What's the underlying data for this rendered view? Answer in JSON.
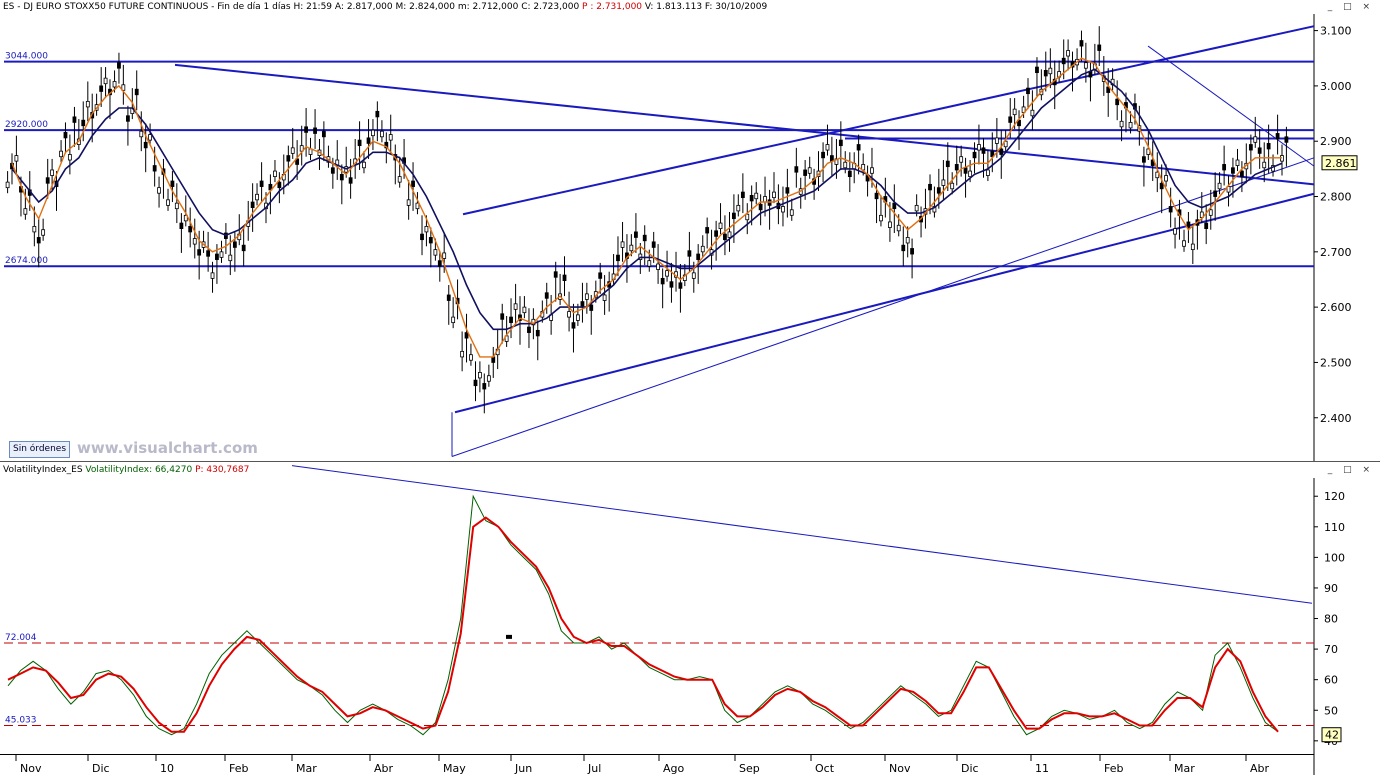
{
  "header_top": {
    "symbol": "ES",
    "name": "DJ EURO STOXX50 FUTURE CONTINUOUS",
    "period": "Fin de día 1 días",
    "H": "H: 21:59",
    "A": "A: 2.817,000",
    "M": "M: 2.824,000",
    "m": "m: 2.712,000",
    "C": "C: 2.723,000",
    "P": "P : 2.731,000",
    "V": "V: 1.813.113",
    "F": "F: 30/10/2009"
  },
  "header_bottom": {
    "name": "VolatilityIndex_ES",
    "indicator": "VolatilityIndex: 66,4270",
    "P": "P: 430,7687"
  },
  "window_buttons": "_ □ ×",
  "orders_button": "Sin órdenes",
  "watermark": "www.visualchart.com",
  "chart_data": [
    {
      "type": "line",
      "subtype": "candlestick-with-trendlines",
      "y_ticks": [
        "3.100",
        "3.000",
        "2.900",
        "2.800",
        "2.700",
        "2.600",
        "2.500",
        "2.400"
      ],
      "ylim": [
        2320,
        3130
      ],
      "current_price_label": "2.861",
      "level_labels": [
        "3044.000",
        "2920.000",
        "2674.000"
      ],
      "levels": [
        3044,
        2920,
        2674
      ],
      "series": [
        {
          "values": [
            2850,
            2790,
            2740,
            2830,
            2900,
            2910,
            2960,
            2990,
            3020,
            2960,
            2900,
            2840,
            2800,
            2760,
            2700,
            2680,
            2700,
            2720,
            2780,
            2800,
            2840,
            2870,
            2910,
            2890,
            2860,
            2830,
            2880,
            2920,
            2900,
            2860,
            2800,
            2740,
            2680,
            2600,
            2520,
            2470,
            2500,
            2560,
            2600,
            2560,
            2610,
            2630,
            2580,
            2600,
            2640,
            2660,
            2700,
            2720,
            2690,
            2660,
            2640,
            2680,
            2710,
            2740,
            2760,
            2780,
            2800,
            2790,
            2800,
            2820,
            2840,
            2870,
            2880,
            2860,
            2840,
            2790,
            2760,
            2720,
            2760,
            2800,
            2830,
            2860,
            2870,
            2860,
            2900,
            2940,
            2980,
            3000,
            3020,
            3040,
            3060,
            3040,
            3000,
            2960,
            2940,
            2880,
            2820,
            2760,
            2720,
            2760,
            2800,
            2830,
            2860,
            2890,
            2880,
            2880
          ]
        },
        {
          "values": [
            2860,
            2800,
            2760,
            2820,
            2880,
            2900,
            2950,
            2980,
            3000,
            2970,
            2910,
            2860,
            2810,
            2770,
            2720,
            2700,
            2710,
            2730,
            2770,
            2800,
            2830,
            2860,
            2890,
            2880,
            2860,
            2840,
            2870,
            2900,
            2890,
            2860,
            2810,
            2760,
            2700,
            2630,
            2560,
            2510,
            2510,
            2550,
            2580,
            2570,
            2600,
            2620,
            2590,
            2600,
            2630,
            2650,
            2690,
            2710,
            2690,
            2670,
            2650,
            2670,
            2700,
            2730,
            2750,
            2770,
            2790,
            2790,
            2800,
            2810,
            2830,
            2860,
            2870,
            2860,
            2840,
            2800,
            2770,
            2740,
            2760,
            2790,
            2820,
            2850,
            2860,
            2860,
            2890,
            2930,
            2960,
            2990,
            3010,
            3030,
            3050,
            3040,
            3000,
            2970,
            2940,
            2890,
            2830,
            2780,
            2740,
            2760,
            2790,
            2820,
            2850,
            2870,
            2870,
            2870
          ]
        },
        {
          "values": [
            2850,
            2820,
            2790,
            2810,
            2850,
            2870,
            2910,
            2940,
            2960,
            2960,
            2930,
            2890,
            2850,
            2810,
            2770,
            2740,
            2730,
            2740,
            2760,
            2780,
            2810,
            2830,
            2860,
            2870,
            2860,
            2850,
            2860,
            2880,
            2880,
            2870,
            2840,
            2800,
            2750,
            2700,
            2640,
            2590,
            2560,
            2560,
            2570,
            2570,
            2580,
            2600,
            2600,
            2600,
            2620,
            2640,
            2670,
            2690,
            2690,
            2680,
            2670,
            2670,
            2690,
            2710,
            2730,
            2750,
            2770,
            2780,
            2790,
            2800,
            2810,
            2830,
            2850,
            2850,
            2840,
            2820,
            2790,
            2770,
            2770,
            2780,
            2800,
            2820,
            2840,
            2850,
            2870,
            2900,
            2930,
            2960,
            2980,
            3000,
            3020,
            3030,
            3010,
            2990,
            2960,
            2920,
            2870,
            2820,
            2790,
            2780,
            2790,
            2800,
            2820,
            2840,
            2850,
            2860
          ]
        }
      ]
    },
    {
      "type": "line",
      "y_ticks": [
        "120",
        "110",
        "100",
        "90",
        "80",
        "70",
        "60",
        "50",
        "40"
      ],
      "ylim": [
        37,
        124
      ],
      "current_value_label": "42",
      "level_labels": [
        "72.004",
        "45.033"
      ],
      "levels": [
        72.004,
        45.033
      ],
      "series": [
        {
          "values": [
            58,
            63,
            66,
            63,
            57,
            52,
            56,
            62,
            63,
            60,
            55,
            48,
            44,
            42,
            44,
            52,
            62,
            68,
            72,
            76,
            72,
            68,
            64,
            60,
            58,
            55,
            50,
            46,
            50,
            52,
            50,
            47,
            45,
            42,
            46,
            60,
            80,
            120,
            112,
            110,
            104,
            100,
            96,
            88,
            76,
            72,
            72,
            74,
            70,
            72,
            68,
            64,
            62,
            60,
            60,
            61,
            60,
            50,
            46,
            48,
            52,
            56,
            58,
            56,
            52,
            50,
            47,
            44,
            46,
            50,
            54,
            58,
            55,
            52,
            48,
            50,
            58,
            66,
            64,
            56,
            48,
            42,
            44,
            48,
            50,
            49,
            47,
            48,
            50,
            46,
            44,
            46,
            52,
            56,
            54,
            50,
            68,
            72,
            64,
            54,
            46,
            43
          ]
        },
        {
          "values": [
            60,
            62,
            64,
            63,
            59,
            54,
            55,
            60,
            62,
            61,
            57,
            51,
            46,
            43,
            43,
            49,
            58,
            65,
            70,
            74,
            73,
            69,
            65,
            61,
            58,
            56,
            52,
            48,
            49,
            51,
            50,
            48,
            46,
            44,
            45,
            56,
            75,
            110,
            113,
            110,
            105,
            101,
            97,
            90,
            80,
            74,
            72,
            73,
            71,
            71,
            68,
            65,
            63,
            61,
            60,
            60,
            60,
            52,
            48,
            48,
            51,
            55,
            57,
            56,
            53,
            51,
            48,
            45,
            45,
            49,
            53,
            57,
            56,
            53,
            49,
            49,
            56,
            64,
            64,
            57,
            50,
            44,
            44,
            47,
            49,
            49,
            48,
            48,
            49,
            47,
            45,
            45,
            50,
            54,
            54,
            51,
            64,
            70,
            66,
            56,
            48,
            43
          ]
        }
      ]
    }
  ],
  "x_axis": {
    "labels": [
      "Nov",
      "Dic",
      "10",
      "Feb",
      "Mar",
      "Abr",
      "May",
      "Jun",
      "Jul",
      "Ago",
      "Sep",
      "Oct",
      "Nov",
      "Dic",
      "11",
      "Feb",
      "Mar",
      "Abr"
    ]
  },
  "colors": {
    "trendline": "#1a1abf",
    "candle": "#000000",
    "ma_fast": "#e07010",
    "ma_slow": "#101060",
    "vol_fast": "#006000",
    "vol_slow": "#e00000",
    "dashed": "#c00000",
    "label_box": "#ffffc0"
  }
}
